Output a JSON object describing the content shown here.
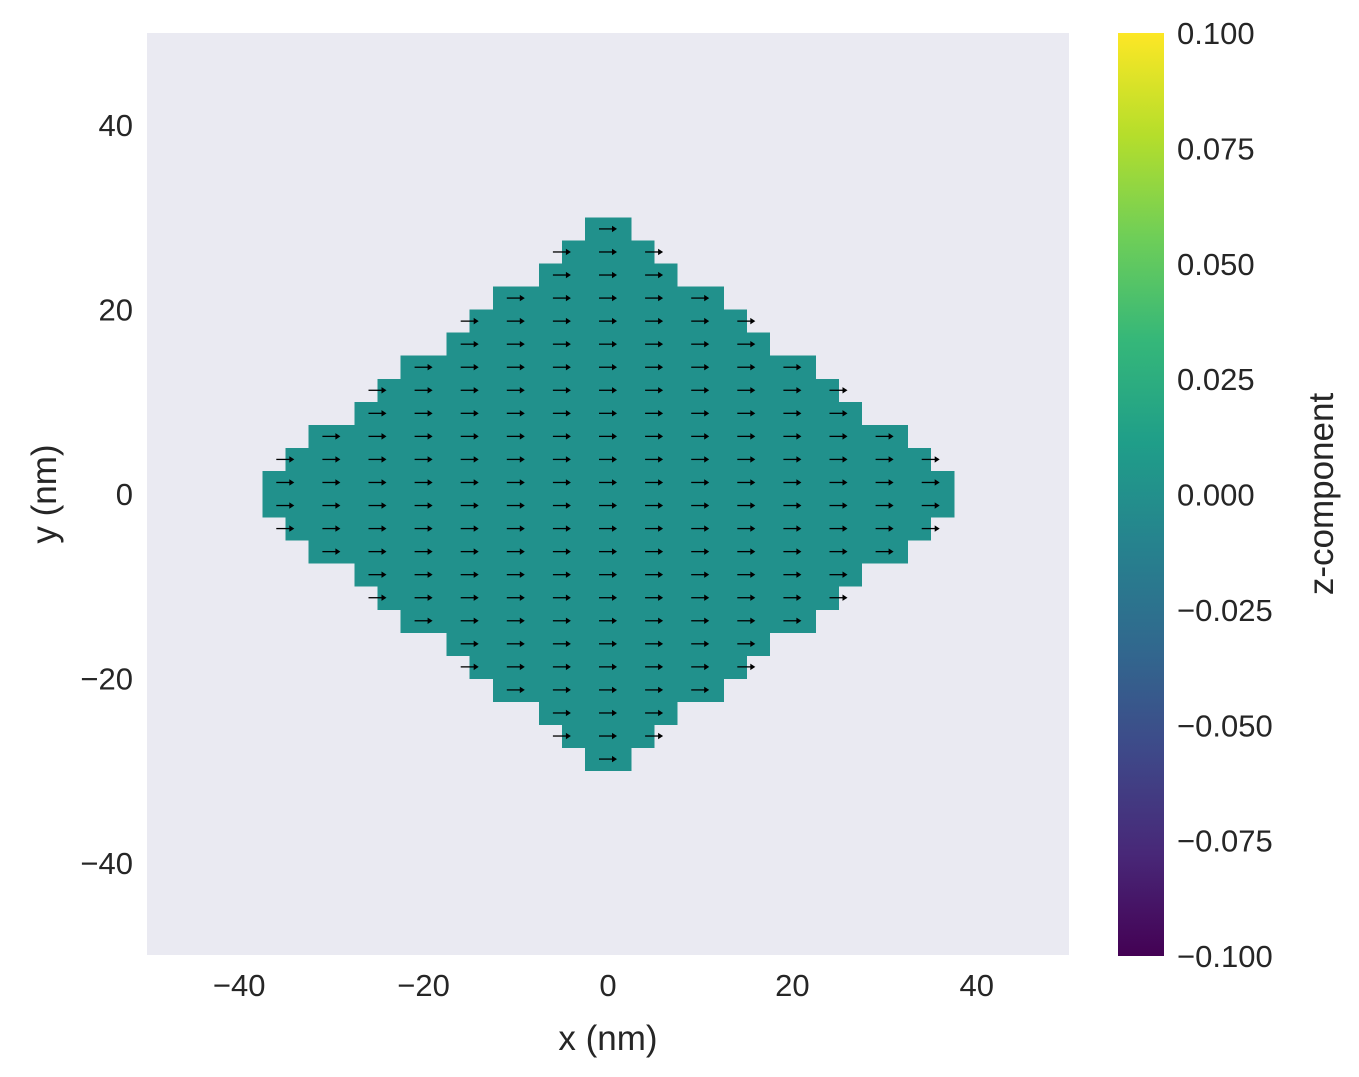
{
  "chart_data": {
    "type": "heatmap",
    "title": "",
    "xlabel": "x (nm)",
    "ylabel": "y (nm)",
    "xlim": [
      -50,
      50
    ],
    "ylim": [
      -50,
      50
    ],
    "x_ticks": [
      -40,
      -20,
      0,
      20,
      40
    ],
    "y_ticks": [
      -40,
      -20,
      0,
      20,
      40
    ],
    "x_tick_labels": [
      "−40",
      "−20",
      "0",
      "20",
      "40"
    ],
    "y_tick_labels": [
      "−40",
      "−20",
      "0",
      "20",
      "40"
    ],
    "grid": false,
    "background_color": "#eaeaf2",
    "cell_size_nm": 5,
    "cell_color": "#21918c",
    "arrow_color": "#000000",
    "magnetization_direction": "+x",
    "value_z": 0.0,
    "row_centers_y": [
      27.5,
      22.5,
      17.5,
      12.5,
      7.5,
      2.5,
      -2.5,
      -7.5,
      -12.5,
      -17.5,
      -22.5,
      -27.5
    ],
    "rows": [
      {
        "y_from": 27.5,
        "y_to": 30,
        "x_from": -2.5,
        "x_to": 2.5
      },
      {
        "y_from": 25,
        "y_to": 27.5,
        "x_from": -5,
        "x_to": 5
      },
      {
        "y_from": 22.5,
        "y_to": 25,
        "x_from": -7.5,
        "x_to": 7.5
      },
      {
        "y_from": 20,
        "y_to": 22.5,
        "x_from": -12.5,
        "x_to": 12.5
      },
      {
        "y_from": 17.5,
        "y_to": 20,
        "x_from": -15,
        "x_to": 15
      },
      {
        "y_from": 15,
        "y_to": 17.5,
        "x_from": -17.5,
        "x_to": 17.5
      },
      {
        "y_from": 12.5,
        "y_to": 15,
        "x_from": -22.5,
        "x_to": 22.5
      },
      {
        "y_from": 10,
        "y_to": 12.5,
        "x_from": -25,
        "x_to": 25
      },
      {
        "y_from": 7.5,
        "y_to": 10,
        "x_from": -27.5,
        "x_to": 27.5
      },
      {
        "y_from": 5,
        "y_to": 7.5,
        "x_from": -32.5,
        "x_to": 32.5
      },
      {
        "y_from": 2.5,
        "y_to": 5,
        "x_from": -35,
        "x_to": 35
      },
      {
        "y_from": -2.5,
        "y_to": 2.5,
        "x_from": -37.5,
        "x_to": 37.5
      },
      {
        "y_from": -5,
        "y_to": -2.5,
        "x_from": -35,
        "x_to": 35
      },
      {
        "y_from": -7.5,
        "y_to": -5,
        "x_from": -32.5,
        "x_to": 32.5
      },
      {
        "y_from": -10,
        "y_to": -7.5,
        "x_from": -27.5,
        "x_to": 27.5
      },
      {
        "y_from": -12.5,
        "y_to": -10,
        "x_from": -25,
        "x_to": 25
      },
      {
        "y_from": -15,
        "y_to": -12.5,
        "x_from": -22.5,
        "x_to": 22.5
      },
      {
        "y_from": -17.5,
        "y_to": -15,
        "x_from": -17.5,
        "x_to": 17.5
      },
      {
        "y_from": -20,
        "y_to": -17.5,
        "x_from": -15,
        "x_to": 15
      },
      {
        "y_from": -22.5,
        "y_to": -20,
        "x_from": -12.5,
        "x_to": 12.5
      },
      {
        "y_from": -25,
        "y_to": -22.5,
        "x_from": -7.5,
        "x_to": 7.5
      },
      {
        "y_from": -27.5,
        "y_to": -25,
        "x_from": -5,
        "x_to": 5
      },
      {
        "y_from": -30,
        "y_to": -27.5,
        "x_from": -2.5,
        "x_to": 2.5
      }
    ],
    "colorbar": {
      "label": "z-component",
      "colormap": "viridis",
      "range": [
        -0.1,
        0.1
      ],
      "ticks": [
        -0.1,
        -0.075,
        -0.05,
        -0.025,
        0.0,
        0.025,
        0.05,
        0.075,
        0.1
      ],
      "tick_labels": [
        "−0.100",
        "−0.075",
        "−0.050",
        "−0.025",
        "0.000",
        "0.025",
        "0.050",
        "0.075",
        "0.100"
      ],
      "colors": [
        "#440154",
        "#482878",
        "#3e4989",
        "#31688e",
        "#26828e",
        "#1f9e89",
        "#35b779",
        "#6ece58",
        "#b5de2b",
        "#fde725"
      ]
    }
  }
}
